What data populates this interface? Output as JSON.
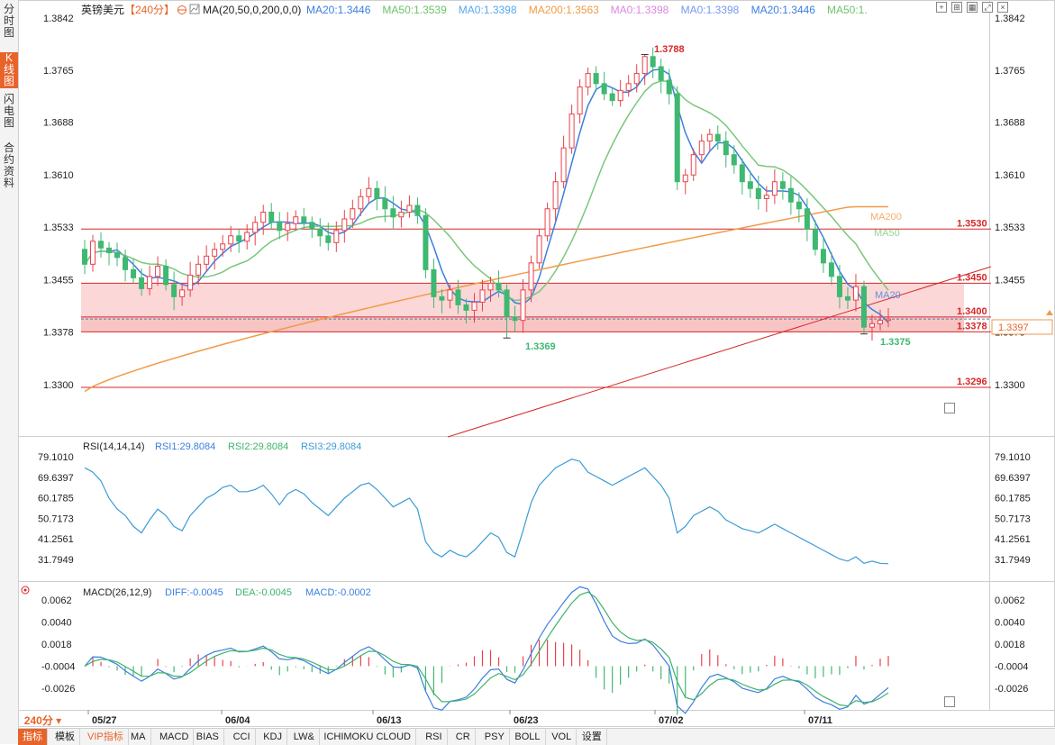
{
  "sidebar": {
    "tabs": [
      {
        "label": "分时图",
        "active": false
      },
      {
        "label": "K线图",
        "active": true
      },
      {
        "label": "闪电图",
        "active": false
      },
      {
        "label": "合约资料",
        "active": false
      }
    ]
  },
  "header": {
    "symbol": "英镑美元",
    "period": "【240分】",
    "ma_params": "MA(20,50,0,200,0,0)",
    "ma_values": [
      {
        "label": "MA20:1.3446",
        "color": "#3b7fe0"
      },
      {
        "label": "MA50:1.3539",
        "color": "#6cc36c"
      },
      {
        "label": "MA0:1.3398",
        "color": "#55aaee"
      },
      {
        "label": "MA200:1.3563",
        "color": "#f29a48"
      },
      {
        "label": "MA0:1.3398",
        "color": "#dd88dd"
      },
      {
        "label": "MA0:1.3398",
        "color": "#7799ee"
      },
      {
        "label": "MA20:1.3446",
        "color": "#3b7fe0"
      },
      {
        "label": "MA50:1.",
        "color": "#6cc36c"
      }
    ]
  },
  "toolbar_icons": [
    "crosshair-icon",
    "expand-icon",
    "grid-icon",
    "fullscreen-icon",
    "close-icon"
  ],
  "y_axis_left": [
    "1.3842",
    "1.3765",
    "1.3688",
    "1.3610",
    "1.3533",
    "1.3455",
    "1.3378",
    "1.3300"
  ],
  "y_axis_right": [
    "1.3842",
    "1.3765",
    "1.3688",
    "1.3610",
    "1.3533",
    "1.3455",
    "1.3378",
    "1.3300"
  ],
  "current_price": "1.3397",
  "levels": [
    {
      "label": "1.3530",
      "value": 1.353
    },
    {
      "label": "1.3450",
      "value": 1.345
    },
    {
      "label": "1.3400",
      "value": 1.34
    },
    {
      "label": "1.3378",
      "value": 1.3378
    },
    {
      "label": "1.3296",
      "value": 1.3296
    }
  ],
  "annotations": {
    "high": "1.3788",
    "low1": "1.3369",
    "low2": "1.3375",
    "ma200_tag": "MA200",
    "ma50_tag": "MA50",
    "ma20_tag": "MA20"
  },
  "rsi": {
    "title": "RSI(14,14,14)",
    "values": [
      "RSI1:29.8084",
      "RSI2:29.8084",
      "RSI3:29.8084"
    ],
    "axis": [
      "79.1010",
      "69.6397",
      "60.1785",
      "50.7173",
      "41.2561",
      "31.7949"
    ]
  },
  "macd": {
    "title": "MACD(26,12,9)",
    "values": [
      {
        "label": "DIFF:-0.0045",
        "color": "#3b7fe0"
      },
      {
        "label": "DEA:-0.0045",
        "color": "#3db36b"
      },
      {
        "label": "MACD:-0.0002",
        "color": "#3b7fe0"
      }
    ],
    "axis": [
      "0.0062",
      "0.0040",
      "0.0018",
      "-0.0004",
      "-0.0026"
    ]
  },
  "x_axis_dates": [
    "05/27",
    "06/04",
    "06/13",
    "06/23",
    "07/02",
    "07/11"
  ],
  "period_label": "240分",
  "bottom_tabs": [
    "指标",
    "模板",
    "VIP指标",
    "MA",
    "MACD",
    "BIAS",
    "CCI",
    "KDJ",
    "LW&",
    "ICHIMOKU CLOUD",
    "RSI",
    "CR",
    "PSY",
    "BOLL",
    "VOL",
    "设置"
  ],
  "colors": {
    "up": "#e8424a",
    "down": "#3fb871",
    "ma20": "#3b7fe0",
    "ma50": "#7ac77a",
    "ma200": "#f29a48",
    "level": "#d62728",
    "zone": "#fbd3d3"
  },
  "chart_data": {
    "type": "candlestick",
    "title": "英镑美元【240分】",
    "ylim": [
      1.3285,
      1.3845
    ],
    "approx_closes": [
      1.3478,
      1.3512,
      1.3502,
      1.3495,
      1.3488,
      1.347,
      1.3458,
      1.3442,
      1.346,
      1.3475,
      1.3448,
      1.343,
      1.344,
      1.3462,
      1.3478,
      1.349,
      1.35,
      1.3508,
      1.352,
      1.3512,
      1.3525,
      1.354,
      1.3555,
      1.354,
      1.3528,
      1.3538,
      1.3548,
      1.354,
      1.353,
      1.352,
      1.351,
      1.3528,
      1.3545,
      1.356,
      1.3578,
      1.359,
      1.3575,
      1.356,
      1.3548,
      1.3555,
      1.3565,
      1.355,
      1.347,
      1.343,
      1.3425,
      1.344,
      1.3418,
      1.341,
      1.3422,
      1.344,
      1.345,
      1.344,
      1.34,
      1.3395,
      1.344,
      1.348,
      1.352,
      1.356,
      1.36,
      1.365,
      1.37,
      1.374,
      1.376,
      1.3745,
      1.373,
      1.372,
      1.3735,
      1.3745,
      1.376,
      1.3785,
      1.377,
      1.375,
      1.373,
      1.36,
      1.361,
      1.364,
      1.366,
      1.367,
      1.366,
      1.364,
      1.3625,
      1.36,
      1.359,
      1.3575,
      1.358,
      1.36,
      1.359,
      1.357,
      1.356,
      1.353,
      1.35,
      1.348,
      1.346,
      1.343,
      1.3425,
      1.3445,
      1.3385,
      1.339,
      1.3395,
      1.3397
    ],
    "rsi_values_approx": [
      74,
      72,
      68,
      60,
      55,
      52,
      47,
      44,
      50,
      55,
      52,
      47,
      45,
      52,
      56,
      60,
      62,
      65,
      66,
      63,
      63,
      64,
      66,
      62,
      57,
      62,
      64,
      62,
      58,
      55,
      52,
      56,
      60,
      63,
      66,
      67,
      64,
      60,
      56,
      58,
      60,
      55,
      40,
      35,
      33,
      36,
      34,
      33,
      36,
      40,
      44,
      42,
      35,
      33,
      45,
      58,
      66,
      70,
      74,
      76,
      78,
      77,
      72,
      70,
      68,
      66,
      68,
      70,
      72,
      74,
      70,
      66,
      60,
      44,
      47,
      52,
      54,
      56,
      54,
      50,
      48,
      46,
      45,
      44,
      46,
      48,
      46,
      44,
      42,
      40,
      38,
      36,
      34,
      32,
      31,
      33,
      30,
      31,
      30,
      29.8
    ],
    "macd_diff_end": -0.0045,
    "macd_dea_end": -0.0045,
    "macd_hist_end": -0.0002
  }
}
